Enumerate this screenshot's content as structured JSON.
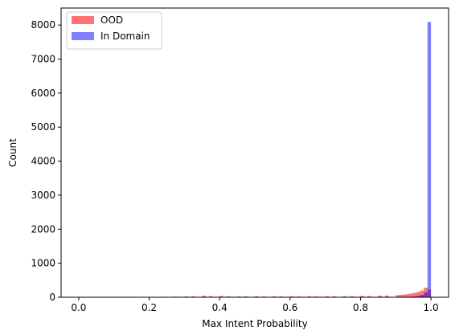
{
  "chart_data": {
    "type": "bar",
    "title": "",
    "xlabel": "Max Intent Probability",
    "ylabel": "Count",
    "xlim": [
      -0.05,
      1.05
    ],
    "ylim": [
      0,
      8500
    ],
    "xticks": [
      0.0,
      0.2,
      0.4,
      0.6,
      0.8,
      1.0
    ],
    "xtick_labels": [
      "0.0",
      "0.2",
      "0.4",
      "0.6",
      "0.8",
      "1.0"
    ],
    "yticks": [
      0,
      1000,
      2000,
      3000,
      4000,
      5000,
      6000,
      7000,
      8000
    ],
    "ytick_labels": [
      "0",
      "1000",
      "2000",
      "3000",
      "4000",
      "5000",
      "6000",
      "7000",
      "8000"
    ],
    "grid": false,
    "legend_position": "top-left",
    "bin_width": 0.01,
    "series": [
      {
        "name": "OOD",
        "color": "#ff0000",
        "opacity": 0.55,
        "x": [
          0.27,
          0.3,
          0.32,
          0.35,
          0.37,
          0.4,
          0.42,
          0.45,
          0.47,
          0.5,
          0.52,
          0.55,
          0.57,
          0.6,
          0.62,
          0.65,
          0.67,
          0.7,
          0.72,
          0.75,
          0.77,
          0.8,
          0.82,
          0.85,
          0.87,
          0.9,
          0.91,
          0.92,
          0.93,
          0.94,
          0.95,
          0.96,
          0.97,
          0.98,
          0.99
        ],
        "values": [
          20,
          25,
          30,
          45,
          35,
          40,
          30,
          25,
          30,
          35,
          25,
          30,
          25,
          30,
          25,
          30,
          25,
          30,
          30,
          35,
          30,
          40,
          35,
          45,
          50,
          60,
          70,
          80,
          95,
          110,
          130,
          160,
          200,
          280,
          220
        ]
      },
      {
        "name": "In Domain",
        "color": "#0000ff",
        "opacity": 0.5,
        "x": [
          0.93,
          0.94,
          0.95,
          0.96,
          0.97,
          0.98,
          0.99
        ],
        "values": [
          10,
          15,
          25,
          40,
          70,
          140,
          8090
        ]
      }
    ]
  }
}
